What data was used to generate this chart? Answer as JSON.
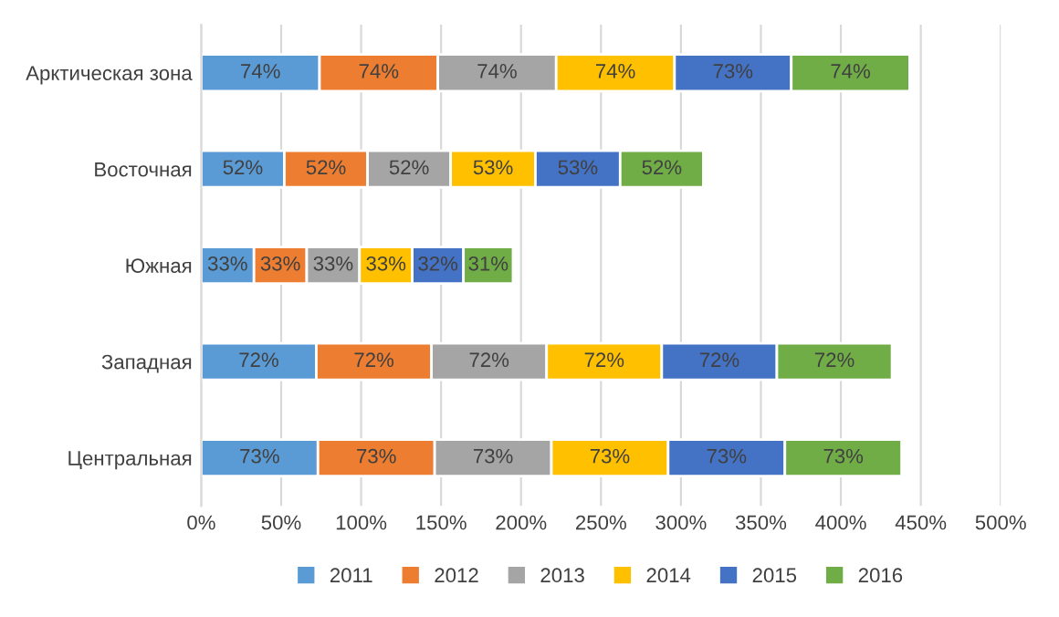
{
  "chart_data": {
    "type": "bar",
    "orientation": "horizontal",
    "stacked": true,
    "categories": [
      "Арктическая зона",
      "Восточная",
      "Южная",
      "Западная",
      "Центральная"
    ],
    "series": [
      {
        "name": "2011",
        "color": "#5b9bd5",
        "values": [
          74,
          52,
          33,
          72,
          73
        ],
        "value_labels": [
          "74%",
          "52%",
          "33%",
          "72%",
          "73%"
        ]
      },
      {
        "name": "2012",
        "color": "#ed7d31",
        "values": [
          74,
          52,
          33,
          72,
          73
        ],
        "value_labels": [
          "74%",
          "52%",
          "33%",
          "72%",
          "73%"
        ]
      },
      {
        "name": "2013",
        "color": "#a5a5a5",
        "values": [
          74,
          52,
          33,
          72,
          73
        ],
        "value_labels": [
          "74%",
          "52%",
          "33%",
          "72%",
          "73%"
        ]
      },
      {
        "name": "2014",
        "color": "#ffc000",
        "values": [
          74,
          53,
          33,
          72,
          73
        ],
        "value_labels": [
          "74%",
          "53%",
          "33%",
          "72%",
          "73%"
        ]
      },
      {
        "name": "2015",
        "color": "#4472c4",
        "values": [
          73,
          53,
          32,
          72,
          73
        ],
        "value_labels": [
          "73%",
          "53%",
          "32%",
          "72%",
          "73%"
        ]
      },
      {
        "name": "2016",
        "color": "#70ad47",
        "values": [
          74,
          52,
          31,
          72,
          73
        ],
        "value_labels": [
          "74%",
          "52%",
          "31%",
          "72%",
          "73%"
        ]
      }
    ],
    "xlim": [
      0,
      500
    ],
    "xticks": [
      {
        "value": 0,
        "label": "0%"
      },
      {
        "value": 50,
        "label": "50%"
      },
      {
        "value": 100,
        "label": "100%"
      },
      {
        "value": 150,
        "label": "150%"
      },
      {
        "value": 200,
        "label": "200%"
      },
      {
        "value": 250,
        "label": "250%"
      },
      {
        "value": 300,
        "label": "300%"
      },
      {
        "value": 350,
        "label": "350%"
      },
      {
        "value": 400,
        "label": "400%"
      },
      {
        "value": 450,
        "label": "450%"
      },
      {
        "value": 500,
        "label": "500%"
      }
    ],
    "grid": "x",
    "legend": "bottom"
  }
}
